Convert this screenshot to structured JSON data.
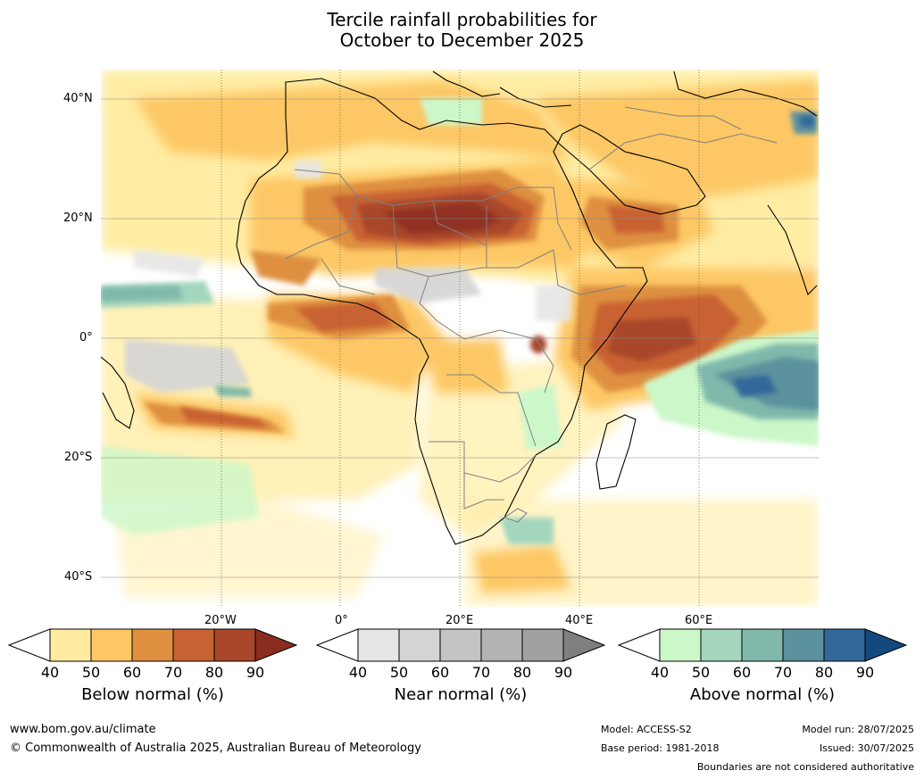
{
  "title": {
    "line1": "Tercile rainfall probabilities for",
    "line2": "October to December 2025"
  },
  "map": {
    "lat_labels": [
      "40°N",
      "20°N",
      "0°",
      "20°S",
      "40°S"
    ],
    "lon_labels": [
      "20°W",
      "0°",
      "20°E",
      "40°E",
      "60°E"
    ]
  },
  "legends": [
    {
      "title": "Below normal (%)",
      "ticks": [
        "40",
        "50",
        "60",
        "70",
        "80",
        "90"
      ],
      "colors": [
        "#ffffff",
        "#ffeca0",
        "#fdc765",
        "#de9040",
        "#c96232",
        "#a8462a",
        "#8b2d1e"
      ]
    },
    {
      "title": "Near normal (%)",
      "ticks": [
        "40",
        "50",
        "60",
        "70",
        "80",
        "90"
      ],
      "colors": [
        "#ffffff",
        "#e6e6e6",
        "#d4d4d4",
        "#c4c4c4",
        "#b3b3b3",
        "#a0a0a0",
        "#7f7f7f"
      ]
    },
    {
      "title": "Above normal (%)",
      "ticks": [
        "40",
        "50",
        "60",
        "70",
        "80",
        "90"
      ],
      "colors": [
        "#ffffff",
        "#ccf7c9",
        "#a3d6bd",
        "#80b8ab",
        "#5c919e",
        "#32689a",
        "#14497e"
      ]
    }
  ],
  "footer": {
    "url": "www.bom.gov.au/climate",
    "copyright": "© Commonwealth of Australia 2025, Australian Bureau of Meteorology",
    "model": "Model: ACCESS-S2",
    "base_period": "Base period: 1981-2018",
    "model_run": "Model run: 28/07/2025",
    "issued": "Issued: 30/07/2025",
    "disclaimer": "Boundaries are not considered authoritative"
  }
}
